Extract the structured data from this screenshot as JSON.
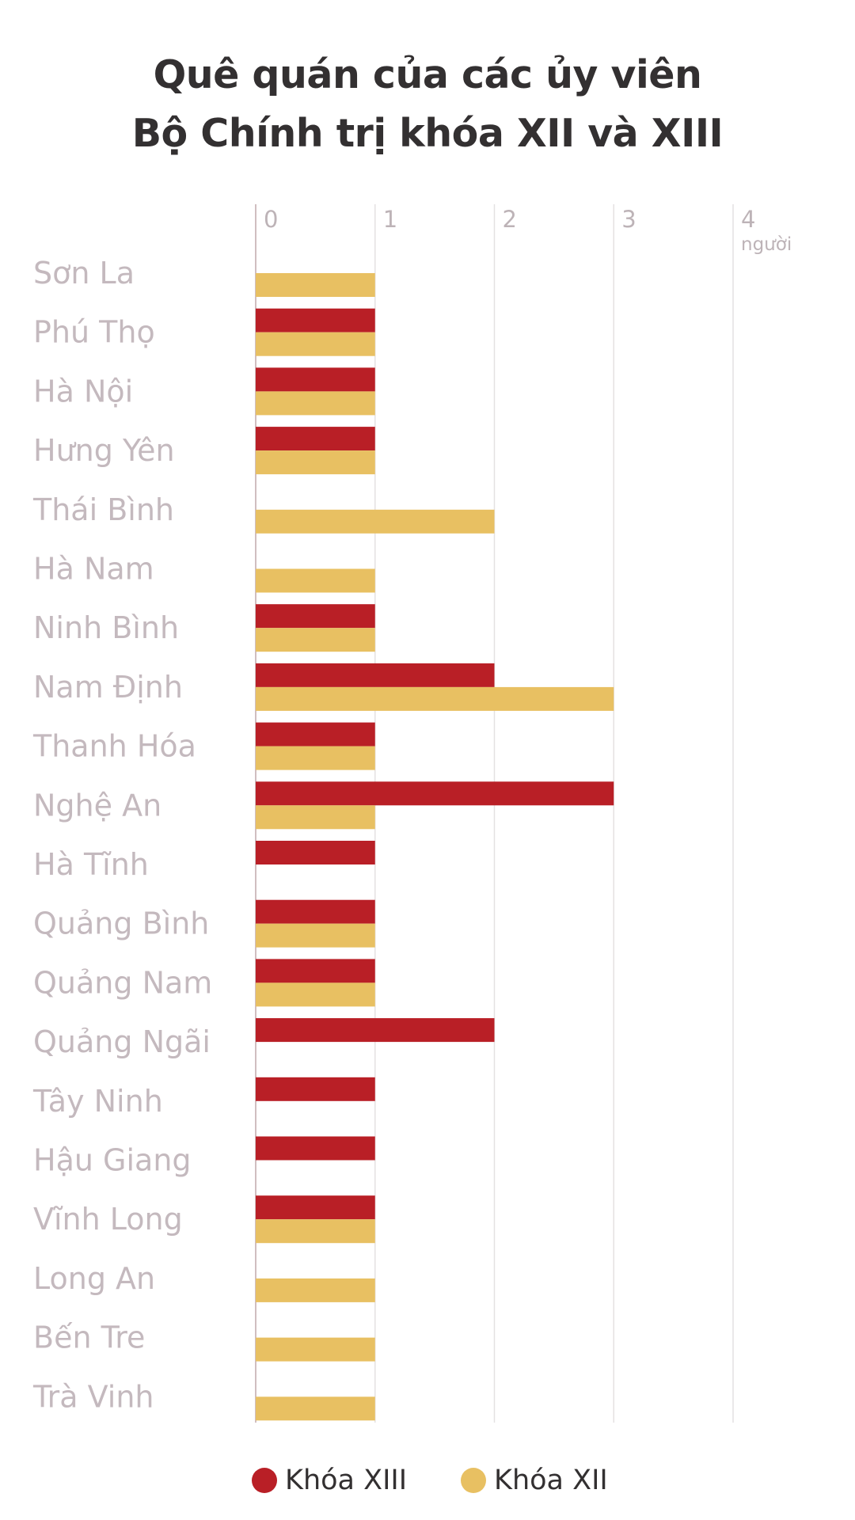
{
  "chart_data": {
    "type": "bar",
    "orientation": "horizontal",
    "title_lines": [
      "Quê quán của các ủy viên",
      "Bộ Chính trị khóa XII và XIII"
    ],
    "categories": [
      "Sơn La",
      "Phú Thọ",
      "Hà Nội",
      "Hưng Yên",
      "Thái Bình",
      "Hà Nam",
      "Ninh Bình",
      "Nam Định",
      "Thanh Hóa",
      "Nghệ An",
      "Hà Tĩnh",
      "Quảng Bình",
      "Quảng Nam",
      "Quảng Ngãi",
      "Tây Ninh",
      "Hậu Giang",
      "Vĩnh Long",
      "Long An",
      "Bến Tre",
      "Trà Vinh"
    ],
    "series": [
      {
        "name": "Khóa XIII",
        "color": "#b91f26",
        "values": [
          0,
          1,
          1,
          1,
          0,
          0,
          1,
          2,
          1,
          3,
          1,
          1,
          1,
          2,
          1,
          1,
          1,
          0,
          0,
          0
        ]
      },
      {
        "name": "Khóa XII",
        "color": "#e8c062",
        "values": [
          1,
          1,
          1,
          1,
          2,
          1,
          1,
          3,
          1,
          1,
          0,
          1,
          1,
          0,
          0,
          0,
          1,
          1,
          1,
          1
        ]
      }
    ],
    "x_ticks": [
      "0",
      "1",
      "2",
      "3",
      "4"
    ],
    "x_unit": "người",
    "xlim": [
      0,
      4
    ],
    "grid": true,
    "legend_position": "bottom"
  }
}
